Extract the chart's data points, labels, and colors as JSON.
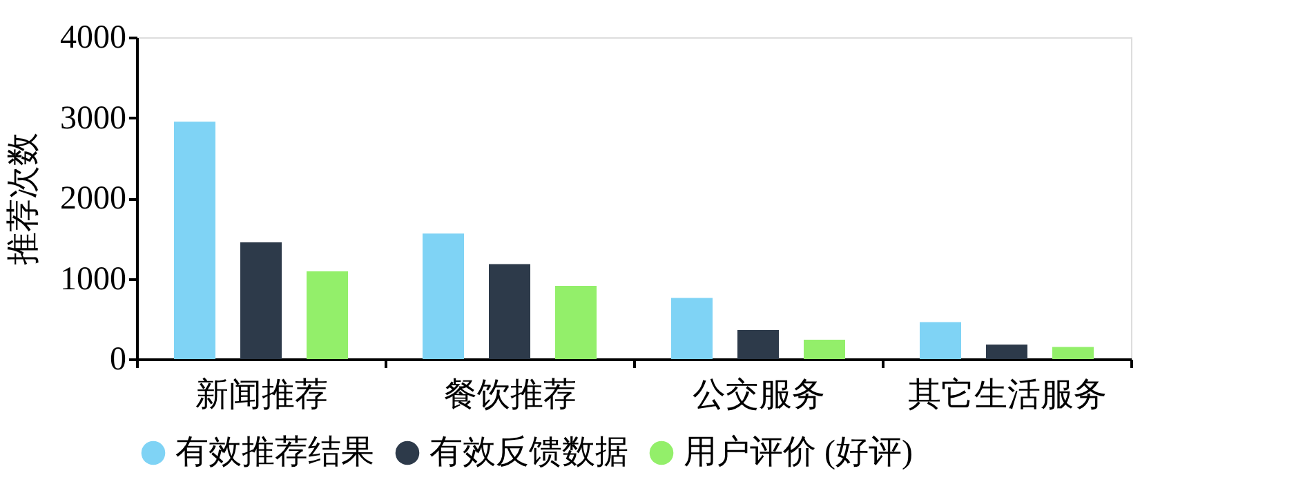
{
  "chart_data": {
    "type": "bar",
    "ylabel": "推荐次数",
    "categories": [
      "新闻推荐",
      "餐饮推荐",
      "公交服务",
      "其它生活服务"
    ],
    "series": [
      {
        "name": "有效推荐结果",
        "color": "#7fd3f5",
        "values": [
          2950,
          1560,
          760,
          460
        ]
      },
      {
        "name": "有效反馈数据",
        "color": "#2d3a4a",
        "values": [
          1450,
          1180,
          360,
          180
        ]
      },
      {
        "name": "用户评价 (好评)",
        "color": "#93ef6a",
        "values": [
          1090,
          910,
          240,
          150
        ]
      }
    ],
    "ylim": [
      0,
      4000
    ],
    "yticks": [
      0,
      1000,
      2000,
      3000,
      4000
    ],
    "grid": false,
    "legend": "bottom",
    "marker": "circle"
  }
}
